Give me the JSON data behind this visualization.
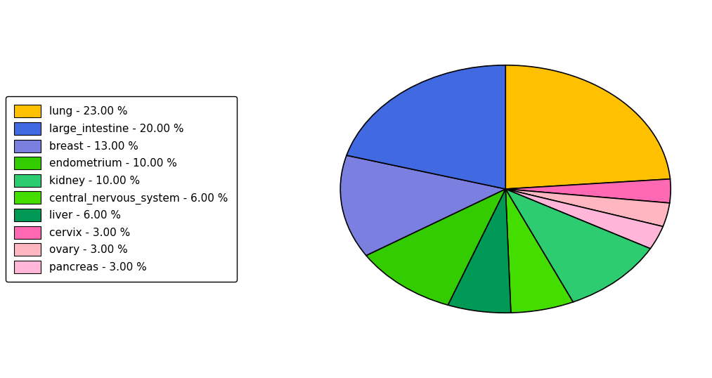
{
  "labels": [
    "lung",
    "cervix",
    "ovary",
    "pancreas",
    "kidney",
    "central_nervous_system",
    "liver",
    "endometrium",
    "breast",
    "large_intestine"
  ],
  "values": [
    23,
    3,
    3,
    3,
    10,
    6,
    6,
    10,
    13,
    20
  ],
  "colors": [
    "#FFC000",
    "#FF69B4",
    "#FFB6C1",
    "#FFB6D9",
    "#2ECC71",
    "#44DD00",
    "#009955",
    "#33CC00",
    "#7B7FE0",
    "#4169E1"
  ],
  "legend_labels": [
    "lung - 23.00 %",
    "large_intestine - 20.00 %",
    "breast - 13.00 %",
    "endometrium - 10.00 %",
    "kidney - 10.00 %",
    "central_nervous_system - 6.00 %",
    "liver - 6.00 %",
    "cervix - 3.00 %",
    "ovary - 3.00 %",
    "pancreas - 3.00 %"
  ],
  "legend_colors": [
    "#FFC000",
    "#4169E1",
    "#7B7FE0",
    "#33CC00",
    "#2ECC71",
    "#44DD00",
    "#009955",
    "#FF69B4",
    "#FFB6C1",
    "#FFB6D9"
  ],
  "background_color": "#ffffff",
  "start_angle": 90,
  "figsize": [
    10.13,
    5.38
  ],
  "dpi": 100
}
